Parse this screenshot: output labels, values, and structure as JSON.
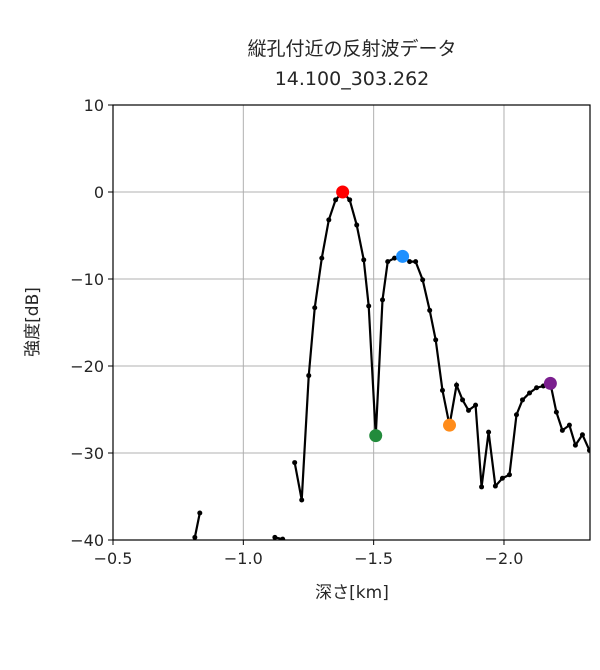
{
  "chart_data": {
    "type": "line",
    "title": [
      "縦孔付近の反射波データ",
      "14.100_303.262"
    ],
    "xlabel": "深さ[km]",
    "ylabel": "強度[dB]",
    "xlim": [
      -0.5,
      -2.33
    ],
    "ylim": [
      -40,
      10
    ],
    "xticks": [
      {
        "value": -0.5,
        "label": "−0.5"
      },
      {
        "value": -1.0,
        "label": "−1.0"
      },
      {
        "value": -1.5,
        "label": "−1.5"
      },
      {
        "value": -2.0,
        "label": "−2.0"
      }
    ],
    "yticks": [
      {
        "value": 10,
        "label": "10"
      },
      {
        "value": 0,
        "label": "0"
      },
      {
        "value": -10,
        "label": "−10"
      },
      {
        "value": -20,
        "label": "−20"
      },
      {
        "value": -30,
        "label": "−30"
      },
      {
        "value": -40,
        "label": "−40"
      }
    ],
    "grid": true,
    "series": [
      {
        "color": "#000000",
        "x": [
          -0.814,
          -0.833,
          null,
          -1.121,
          -1.151,
          null,
          -1.197,
          -1.224,
          -1.251,
          -1.274,
          -1.301,
          -1.328,
          -1.354,
          -1.381,
          -1.408,
          -1.435,
          -1.462,
          -1.481,
          -1.508,
          -1.534,
          -1.554,
          -1.58,
          -1.611,
          -1.638,
          -1.661,
          -1.688,
          -1.715,
          -1.738,
          -1.764,
          -1.791,
          -1.818,
          -1.841,
          -1.864,
          -1.891,
          -1.914,
          -1.941,
          -1.967,
          -1.994,
          -2.021,
          -2.048,
          -2.071,
          -2.098,
          -2.125,
          -2.151,
          -2.178,
          -2.201,
          -2.224,
          -2.251,
          -2.274,
          -2.301,
          -2.328
        ],
        "values": [
          -39.7,
          -36.9,
          null,
          -39.7,
          -39.9,
          null,
          -31.1,
          -35.4,
          -21.1,
          -13.3,
          -7.6,
          -3.2,
          -0.9,
          0.0,
          -0.9,
          -3.8,
          -7.8,
          -13.1,
          -28.0,
          -12.4,
          -8.0,
          -7.6,
          -7.4,
          -8.0,
          -8.0,
          -10.1,
          -13.6,
          -17.0,
          -22.8,
          -26.8,
          -22.2,
          -23.9,
          -25.1,
          -24.5,
          -33.9,
          -27.6,
          -33.8,
          -32.9,
          -32.5,
          -25.6,
          -23.9,
          -23.1,
          -22.5,
          -22.3,
          -22.0,
          -25.3,
          -27.4,
          -26.8,
          -29.1,
          -27.9,
          -29.7
        ]
      }
    ],
    "highlights": [
      {
        "x": -1.381,
        "y": 0.0,
        "color": "#ff0000"
      },
      {
        "x": -1.611,
        "y": -7.4,
        "color": "#1e90ff"
      },
      {
        "x": -1.508,
        "y": -28.0,
        "color": "#228b3c"
      },
      {
        "x": -1.791,
        "y": -26.8,
        "color": "#ff8c1a"
      },
      {
        "x": -2.178,
        "y": -22.0,
        "color": "#7b1f8f"
      }
    ]
  }
}
